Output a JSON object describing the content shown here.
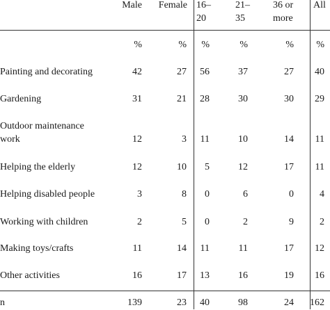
{
  "table": {
    "headers": {
      "male": "Male",
      "female": "Female",
      "age1_line1": "16–",
      "age1_line2": "20",
      "age2_line1": "21–",
      "age2_line2": "35",
      "age3_line1": "36 or",
      "age3_line2": "more",
      "all": "All"
    },
    "units": [
      "%",
      "%",
      "%",
      "%",
      "%",
      "%"
    ],
    "rows": [
      {
        "label": "Painting and decorating",
        "values": [
          "42",
          "27",
          "56",
          "37",
          "27",
          "40"
        ]
      },
      {
        "label": "Gardening",
        "values": [
          "31",
          "21",
          "28",
          "30",
          "30",
          "29"
        ]
      },
      {
        "label_line1": "Outdoor maintenance",
        "label_line2": "work",
        "values": [
          "12",
          "3",
          "11",
          "10",
          "14",
          "11"
        ]
      },
      {
        "label": "Helping the elderly",
        "values": [
          "12",
          "10",
          "5",
          "12",
          "17",
          "11"
        ]
      },
      {
        "label": "Helping disabled people",
        "values": [
          "3",
          "8",
          "0",
          "6",
          "0",
          "4"
        ]
      },
      {
        "label": "Working with children",
        "values": [
          "2",
          "5",
          "0",
          "2",
          "9",
          "2"
        ]
      },
      {
        "label": "Making toys/crafts",
        "values": [
          "11",
          "14",
          "11",
          "11",
          "17",
          "12"
        ]
      },
      {
        "label": "Other activities",
        "values": [
          "16",
          "17",
          "13",
          "16",
          "19",
          "16"
        ]
      }
    ],
    "n_row": {
      "label": "n",
      "values": [
        "139",
        "23",
        "40",
        "98",
        "24",
        "162"
      ]
    }
  }
}
